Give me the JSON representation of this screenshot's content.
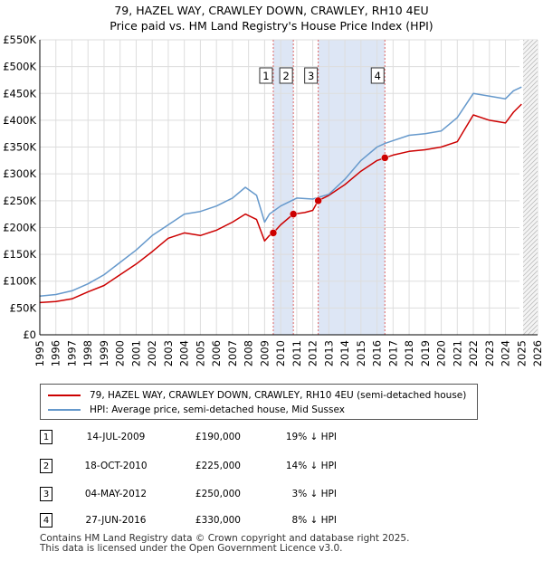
{
  "title_line1": "79, HAZEL WAY, CRAWLEY DOWN, CRAWLEY, RH10 4EU",
  "title_line2": "Price paid vs. HM Land Registry's House Price Index (HPI)",
  "colors": {
    "property": "#cc0000",
    "hpi": "#6699cc",
    "shade": "#dde6f5",
    "vline": "#dd6666",
    "grid": "#dddddd"
  },
  "chart_data": {
    "type": "line",
    "title": "79, HAZEL WAY, CRAWLEY DOWN, CRAWLEY, RH10 4EU — Price paid vs. HM Land Registry's House Price Index (HPI)",
    "xlabel": "",
    "ylabel": "",
    "xlim": [
      1995,
      2026
    ],
    "ylim": [
      0,
      550000
    ],
    "yticks": [
      0,
      50000,
      100000,
      150000,
      200000,
      250000,
      300000,
      350000,
      400000,
      450000,
      500000,
      550000
    ],
    "ytick_labels": [
      "£0",
      "£50K",
      "£100K",
      "£150K",
      "£200K",
      "£250K",
      "£300K",
      "£350K",
      "£400K",
      "£450K",
      "£500K",
      "£550K"
    ],
    "xticks": [
      1995,
      1996,
      1997,
      1998,
      1999,
      2000,
      2001,
      2002,
      2003,
      2004,
      2005,
      2006,
      2007,
      2008,
      2009,
      2010,
      2011,
      2012,
      2013,
      2014,
      2015,
      2016,
      2017,
      2018,
      2019,
      2020,
      2021,
      2022,
      2023,
      2024,
      2025,
      2026
    ],
    "grid": true,
    "shaded_spans": [
      [
        2009.54,
        2010.79
      ],
      [
        2012.34,
        2016.49
      ]
    ],
    "future_from": 2025.1,
    "series": [
      {
        "name": "79, HAZEL WAY, CRAWLEY DOWN, CRAWLEY, RH10 4EU (semi-detached house)",
        "color": "#cc0000",
        "x": [
          1995,
          1996,
          1997,
          1998,
          1999,
          2000,
          2001,
          2002,
          2003,
          2004,
          2005,
          2006,
          2007,
          2007.8,
          2008.5,
          2009,
          2009.3,
          2009.54,
          2010,
          2010.79,
          2011.5,
          2012.0,
          2012.34,
          2013,
          2014,
          2015,
          2016,
          2016.49,
          2017,
          2018,
          2019,
          2020,
          2021,
          2022,
          2023,
          2024,
          2024.5,
          2025.0
        ],
        "values": [
          60000,
          62000,
          67000,
          80000,
          92000,
          112000,
          132000,
          155000,
          180000,
          190000,
          185000,
          195000,
          210000,
          225000,
          215000,
          175000,
          185000,
          190000,
          205000,
          225000,
          228000,
          232000,
          250000,
          260000,
          280000,
          305000,
          325000,
          330000,
          335000,
          342000,
          345000,
          350000,
          360000,
          410000,
          400000,
          395000,
          415000,
          430000
        ]
      },
      {
        "name": "HPI: Average price, semi-detached house, Mid Sussex",
        "color": "#6699cc",
        "x": [
          1995,
          1996,
          1997,
          1998,
          1999,
          2000,
          2001,
          2002,
          2003,
          2004,
          2005,
          2006,
          2007,
          2007.8,
          2008.5,
          2009,
          2009.3,
          2010,
          2011,
          2012,
          2013,
          2014,
          2015,
          2016,
          2016.5,
          2017,
          2018,
          2019,
          2020,
          2021,
          2022,
          2023,
          2024,
          2024.5,
          2025.0
        ],
        "values": [
          72000,
          75000,
          82000,
          95000,
          112000,
          135000,
          158000,
          185000,
          205000,
          225000,
          230000,
          240000,
          255000,
          275000,
          260000,
          210000,
          225000,
          240000,
          255000,
          253000,
          262000,
          290000,
          325000,
          350000,
          357000,
          362000,
          372000,
          375000,
          380000,
          405000,
          450000,
          445000,
          440000,
          455000,
          462000
        ]
      }
    ],
    "sale_points": [
      {
        "label": "1",
        "x": 2009.54,
        "value": 190000
      },
      {
        "label": "2",
        "x": 2010.79,
        "value": 225000
      },
      {
        "label": "3",
        "x": 2012.34,
        "value": 250000
      },
      {
        "label": "4",
        "x": 2016.49,
        "value": 330000
      }
    ]
  },
  "legend": {
    "property_label": "79, HAZEL WAY, CRAWLEY DOWN, CRAWLEY, RH10 4EU (semi-detached house)",
    "hpi_label": "HPI: Average price, semi-detached house, Mid Sussex"
  },
  "transactions": [
    {
      "num": "1",
      "date": "14-JUL-2009",
      "price": "£190,000",
      "hpi": "19% ↓ HPI"
    },
    {
      "num": "2",
      "date": "18-OCT-2010",
      "price": "£225,000",
      "hpi": "14% ↓ HPI"
    },
    {
      "num": "3",
      "date": "04-MAY-2012",
      "price": "£250,000",
      "hpi": "3% ↓ HPI"
    },
    {
      "num": "4",
      "date": "27-JUN-2016",
      "price": "£330,000",
      "hpi": "8% ↓ HPI"
    }
  ],
  "footer": {
    "line1": "Contains HM Land Registry data © Crown copyright and database right 2025.",
    "line2": "This data is licensed under the Open Government Licence v3.0."
  }
}
